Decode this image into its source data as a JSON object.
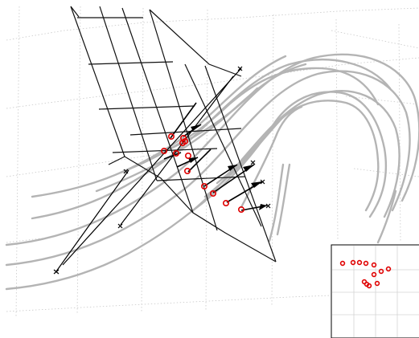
{
  "figure": {
    "description_visible_text": "",
    "colors": {
      "streamlines": "#b4b4b4",
      "markers": "#e00000",
      "mesh": "#111111",
      "grid": "#c8c8c8",
      "background": "#ffffff"
    },
    "elements": {
      "streamline_count": 14,
      "marker_count_main": 12,
      "marker_count_inset": 12,
      "arrow_count": 9
    }
  }
}
